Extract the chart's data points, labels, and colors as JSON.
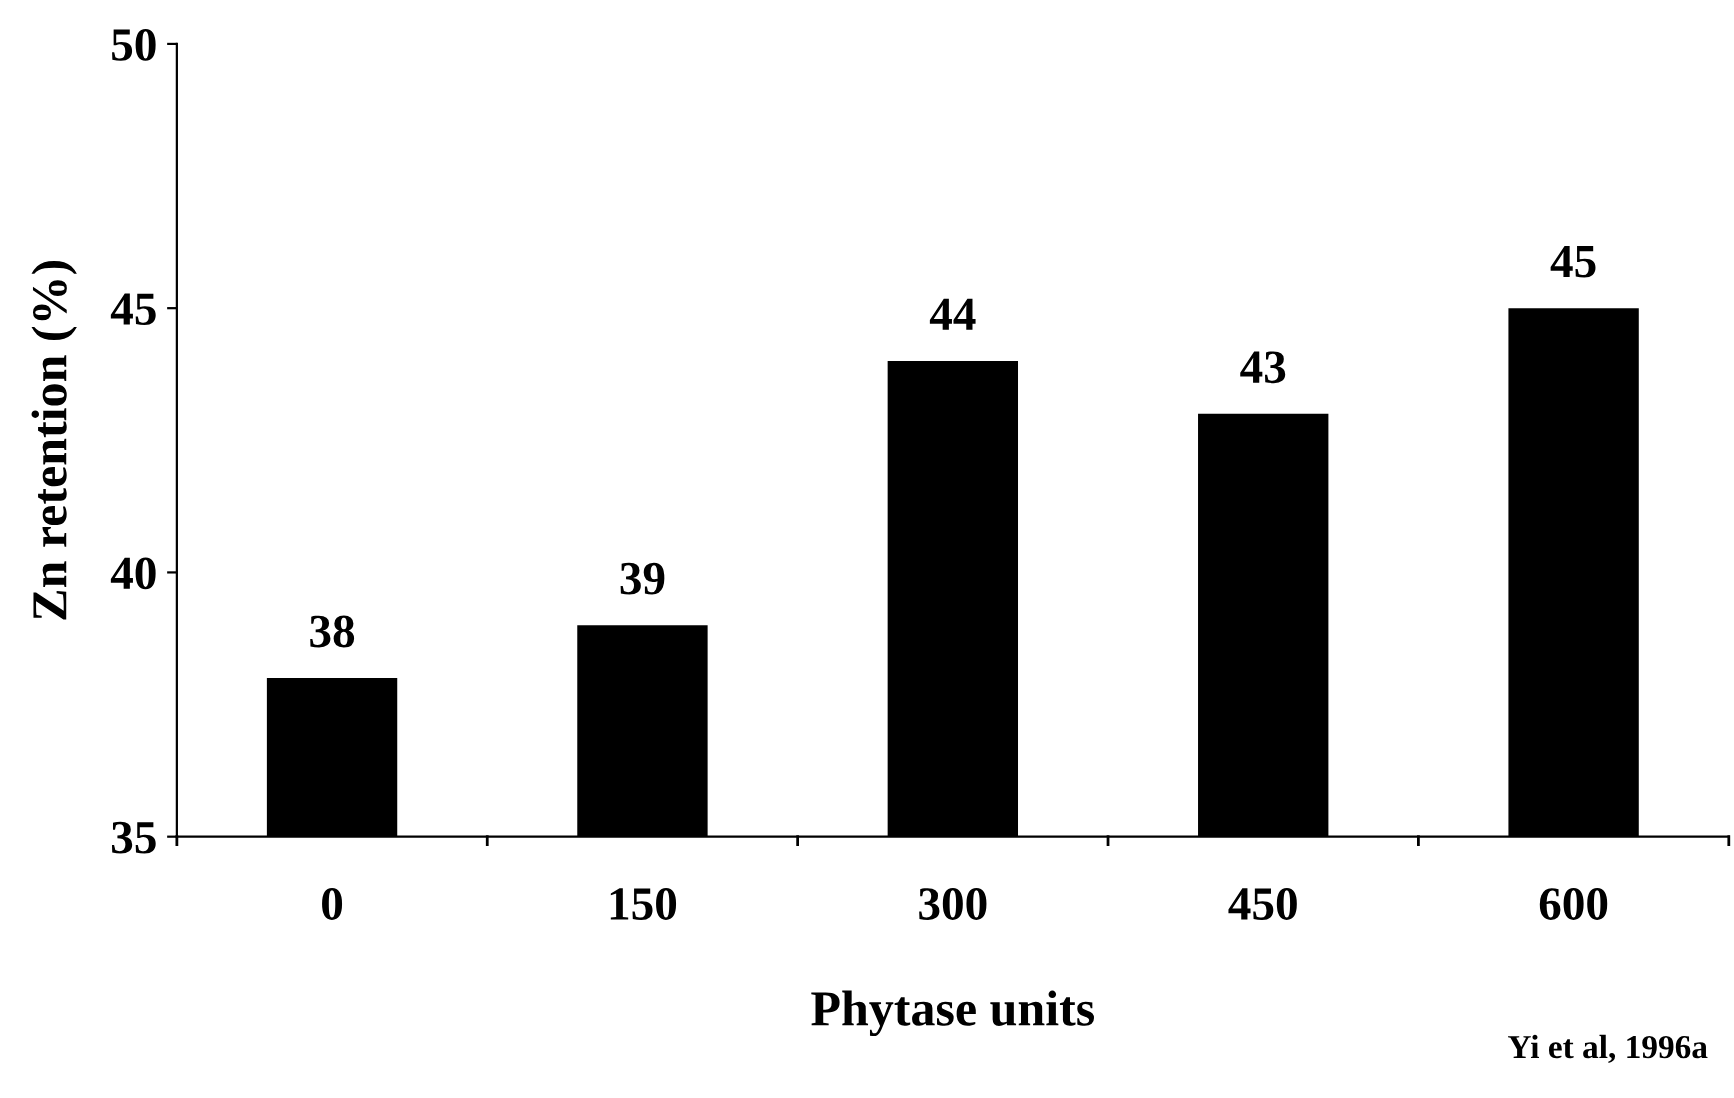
{
  "chart_data": {
    "type": "bar",
    "xlabel": "Phytase units",
    "ylabel": "Zn retention (%)",
    "categories": [
      "0",
      "150",
      "300",
      "450",
      "600"
    ],
    "values": [
      38,
      39,
      44,
      43,
      45
    ],
    "color": "#000000",
    "ylim": [
      35,
      50
    ],
    "yticks": [
      35,
      40,
      45,
      50
    ],
    "data_labels": true,
    "grid": false,
    "legend": false,
    "annotations": [
      "Yi et al, 1996a"
    ]
  }
}
